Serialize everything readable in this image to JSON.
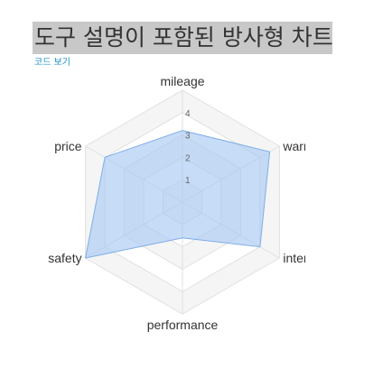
{
  "page": {
    "title": "도구 설명이 포함된 방사형 차트",
    "code_link": "코드 보기"
  },
  "colors": {
    "fill": "#a9c9f2",
    "stroke": "#7eaee8",
    "grid_band_a": "#f5f5f5",
    "grid_band_b": "#ffffff",
    "grid_line": "#e0e0e0",
    "title_bg": "#c8c8c8",
    "link": "#1a8fc9"
  },
  "chart_data": {
    "type": "radar",
    "title": "",
    "indicators": [
      "mileage",
      "warranty",
      "interior",
      "performance",
      "safety",
      "price"
    ],
    "max": 5,
    "ticks": [
      "1",
      "2",
      "3",
      "4"
    ],
    "series": [
      {
        "values": [
          3.2,
          4.5,
          4.0,
          1.6,
          5.0,
          4.0
        ]
      }
    ],
    "grid": true,
    "legend": "none"
  }
}
